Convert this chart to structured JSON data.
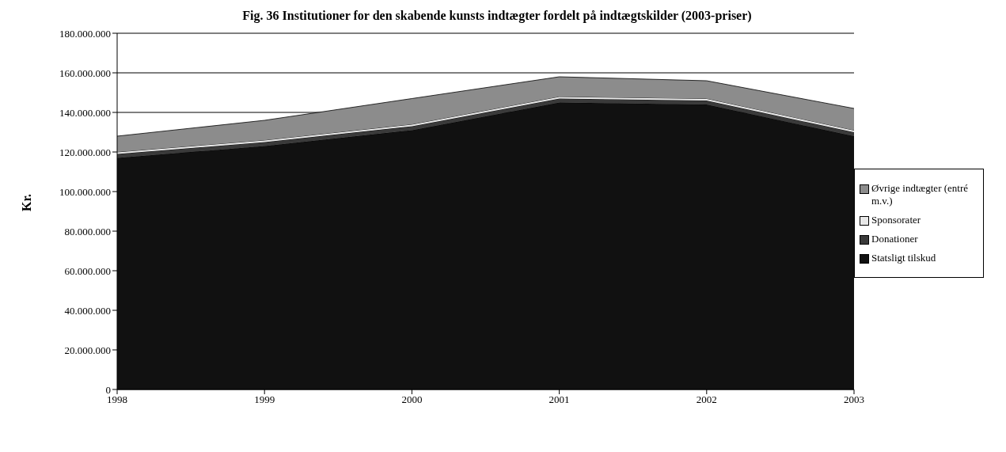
{
  "chart_data": {
    "type": "area",
    "title": "Fig. 36 Institutioner for den skabende kunsts indtægter fordelt på indtægtskilder (2003-priser)",
    "ylabel": "Kr.",
    "stacked": true,
    "x": [
      1998,
      1999,
      2000,
      2001,
      2002,
      2003
    ],
    "xlim": [
      1998,
      2003
    ],
    "xticks": [
      1998,
      1999,
      2000,
      2001,
      2002,
      2003
    ],
    "ylim": [
      0,
      180000000
    ],
    "yticks": [
      {
        "value": 0,
        "label": "0"
      },
      {
        "value": 20000000,
        "label": "20.000.000"
      },
      {
        "value": 40000000,
        "label": "40.000.000"
      },
      {
        "value": 60000000,
        "label": "60.000.000"
      },
      {
        "value": 80000000,
        "label": "80.000.000"
      },
      {
        "value": 100000000,
        "label": "100.000.000"
      },
      {
        "value": 120000000,
        "label": "120.000.000"
      },
      {
        "value": 140000000,
        "label": "140.000.000"
      },
      {
        "value": 160000000,
        "label": "160.000.000"
      },
      {
        "value": 180000000,
        "label": "180.000.000"
      }
    ],
    "grid": "y",
    "legend": "right",
    "series": [
      {
        "name": "Statsligt tilskud",
        "color": "#111111",
        "values": [
          117000000,
          123000000,
          131000000,
          145000000,
          144000000,
          128000000
        ]
      },
      {
        "name": "Donationer",
        "color": "#3a3a3a",
        "values": [
          2000000,
          2000000,
          2000000,
          2000000,
          2000000,
          2000000
        ]
      },
      {
        "name": "Sponsorater",
        "color": "#e8e8e8",
        "values": [
          1000000,
          1000000,
          1000000,
          1000000,
          1000000,
          1000000
        ]
      },
      {
        "name": "Øvrige indtægter (entré m.v.)",
        "color": "#8c8c8c",
        "values": [
          8000000,
          10000000,
          13000000,
          10000000,
          9000000,
          11000000
        ]
      }
    ]
  }
}
